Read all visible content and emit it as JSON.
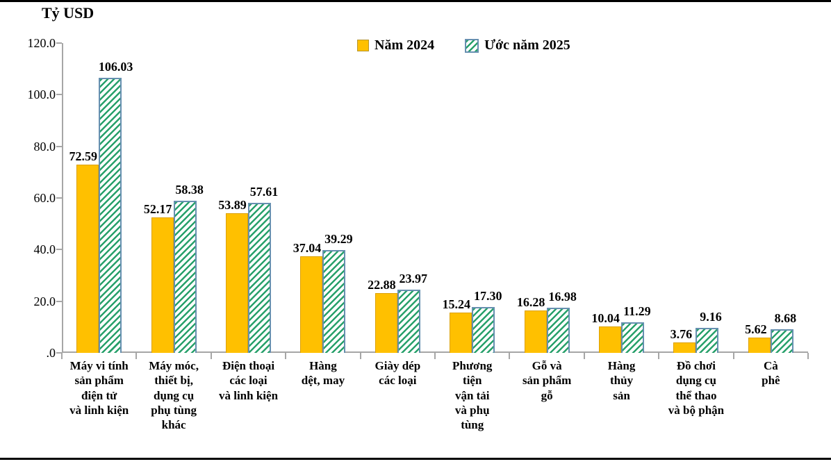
{
  "page": {
    "unit_label": "Tỷ USD"
  },
  "legend": {
    "items": [
      {
        "label": "Năm 2024",
        "swatch": "solid-gold-square"
      },
      {
        "label": "Ước năm 2025",
        "swatch": "green-hatched-square"
      }
    ]
  },
  "colors": {
    "series_2024_fill": "#FFC000",
    "series_2025_stripe": "#27A06A",
    "series_2025_border": "#6690B0",
    "axis": "#A6A6A6",
    "frame": "#000000",
    "text": "#000000"
  },
  "chart_data": {
    "type": "bar",
    "title": "",
    "unit": "Tỷ USD",
    "ylabel": "Tỷ USD",
    "xlabel": "",
    "ylim": [
      0,
      120
    ],
    "ytick_labels": [
      "120.0",
      "100.0",
      "80.0",
      "60.0",
      "40.0",
      "20.0",
      ".0"
    ],
    "grid": false,
    "legend_position": "top-center",
    "categories": [
      "Máy vi tính\nsản phẩm\nđiện tử\nvà linh kiện",
      "Máy móc,\nthiết bị,\ndụng cụ\nphụ tùng\nkhác",
      "Điện thoại\ncác loại\nvà linh kiện",
      "Hàng\ndệt, may",
      "Giày dép\ncác loại",
      "Phương\ntiện\nvận tải\nvà phụ\ntùng",
      "Gỗ và\nsản phẩm\ngỗ",
      "Hàng\nthủy\nsản",
      "Đồ chơi\ndụng cụ\nthể thao\nvà bộ phận",
      "Cà\nphê"
    ],
    "series": [
      {
        "name": "Năm 2024",
        "values": [
          72.59,
          52.17,
          53.89,
          37.04,
          22.88,
          15.24,
          16.28,
          10.04,
          3.76,
          5.62
        ],
        "value_labels": [
          "72.59",
          "52.17",
          "53.89",
          "37.04",
          "22.88",
          "15.24",
          "16.28",
          "10.04",
          "3.76",
          "5.62"
        ]
      },
      {
        "name": "Ước năm 2025",
        "values": [
          106.03,
          58.38,
          57.61,
          39.29,
          23.97,
          17.3,
          16.98,
          11.29,
          9.16,
          8.68
        ],
        "value_labels": [
          "106.03",
          "58.38",
          "57.61",
          "39.29",
          "23.97",
          "17.30",
          "16.98",
          "11.29",
          "9.16",
          "8.68"
        ]
      }
    ]
  }
}
